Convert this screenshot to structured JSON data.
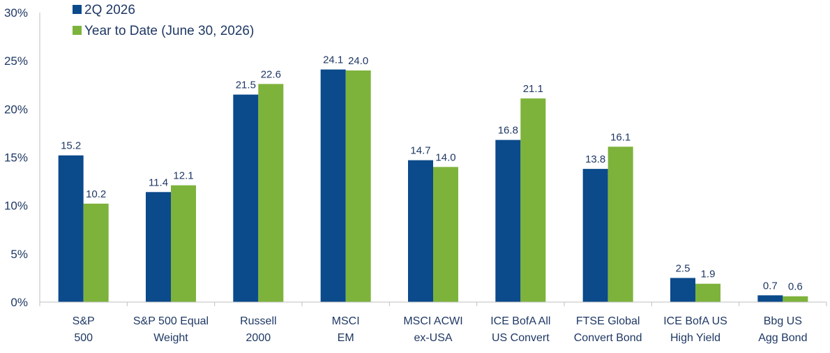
{
  "chart_data": {
    "type": "bar",
    "title": "",
    "xlabel": "",
    "ylabel": "",
    "ylim": [
      0,
      30
    ],
    "yticks": [
      0,
      5,
      10,
      15,
      20,
      25,
      30
    ],
    "ytick_labels": [
      "0%",
      "5%",
      "10%",
      "15%",
      "20%",
      "25%",
      "30%"
    ],
    "grid": false,
    "legend_position": "top-left",
    "categories": [
      [
        "S&P",
        "500"
      ],
      [
        "S&P 500 Equal",
        "Weight"
      ],
      [
        "Russell",
        "2000"
      ],
      [
        "MSCI",
        "EM"
      ],
      [
        "MSCI ACWI",
        "ex-USA"
      ],
      [
        "ICE BofA All",
        "US Convert"
      ],
      [
        "FTSE Global",
        "Convert Bond"
      ],
      [
        "ICE BofA US",
        "High Yield"
      ],
      [
        "Bbg US",
        "Agg Bond"
      ]
    ],
    "series": [
      {
        "name": "2Q 2026",
        "color": "#0b4a8b",
        "values": [
          15.2,
          11.4,
          21.5,
          24.1,
          14.7,
          16.8,
          13.8,
          2.5,
          0.7
        ],
        "labels": [
          "15.2",
          "11.4",
          "21.5",
          "24.1",
          "14.7",
          "16.8",
          "13.8",
          "2.5",
          "0.7"
        ]
      },
      {
        "name": "Year to Date (June 30, 2026)",
        "color": "#7db33b",
        "values": [
          10.2,
          12.1,
          22.6,
          24.0,
          14.0,
          21.1,
          16.1,
          1.9,
          0.6
        ],
        "labels": [
          "10.2",
          "12.1",
          "22.6",
          "24.0",
          "14.0",
          "21.1",
          "16.1",
          "1.9",
          "0.6"
        ]
      }
    ]
  }
}
